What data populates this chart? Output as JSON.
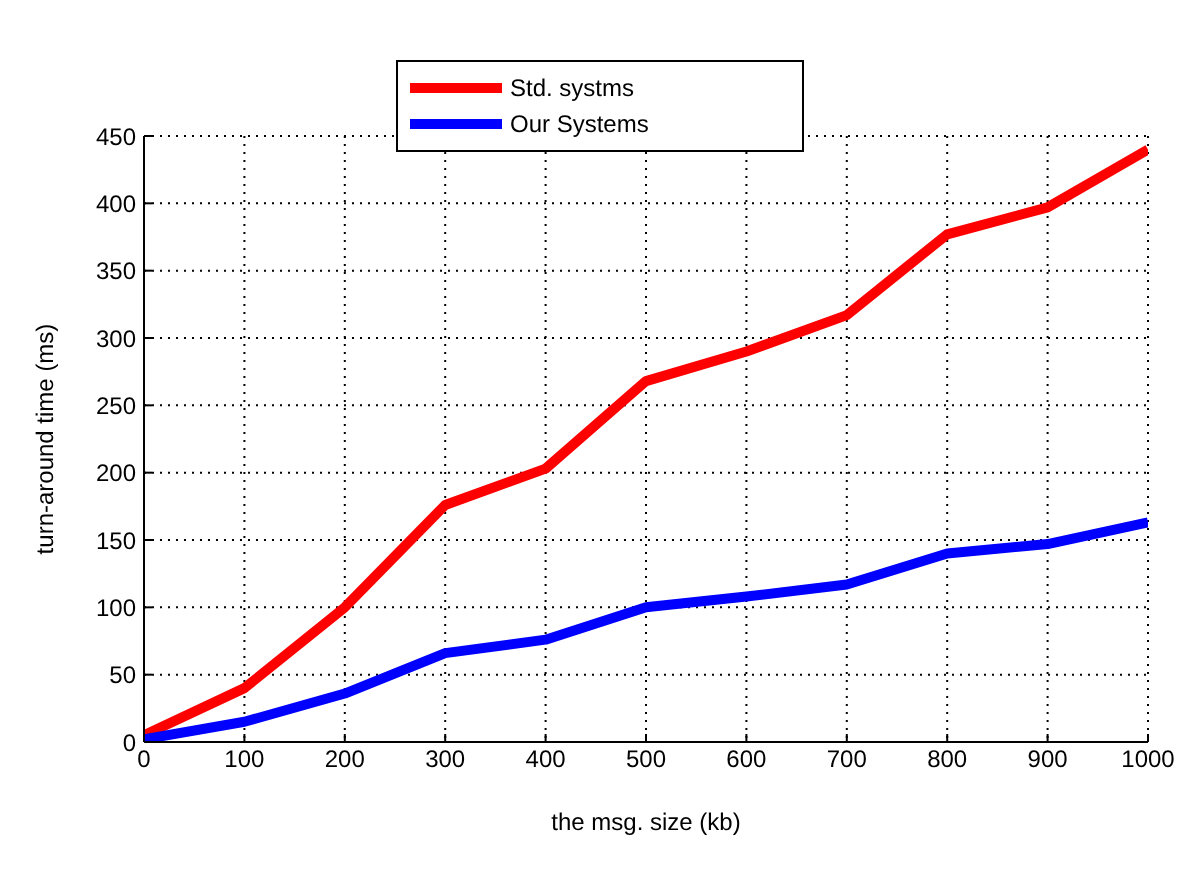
{
  "chart_data": {
    "type": "line",
    "xlabel": "the msg. size (kb)",
    "ylabel": "turn-around time (ms)",
    "x": [
      0,
      100,
      200,
      300,
      400,
      500,
      600,
      700,
      800,
      900,
      1000
    ],
    "series": [
      {
        "name": "Std. systms",
        "color": "#ff0000",
        "values": [
          5,
          40,
          100,
          176,
          203,
          268,
          290,
          317,
          377,
          397,
          440
        ]
      },
      {
        "name": "Our Systems",
        "color": "#0000ff",
        "values": [
          2,
          15,
          36,
          66,
          76,
          100,
          108,
          117,
          140,
          147,
          163
        ]
      }
    ],
    "xlim": [
      0,
      1000
    ],
    "xticks": [
      0,
      100,
      200,
      300,
      400,
      500,
      600,
      700,
      800,
      900,
      1000
    ],
    "ylim": [
      0,
      450
    ],
    "yticks": [
      0,
      50,
      100,
      150,
      200,
      250,
      300,
      350,
      400,
      450
    ],
    "grid": true,
    "legend": "top",
    "marker": "none",
    "line_style": "solid"
  }
}
